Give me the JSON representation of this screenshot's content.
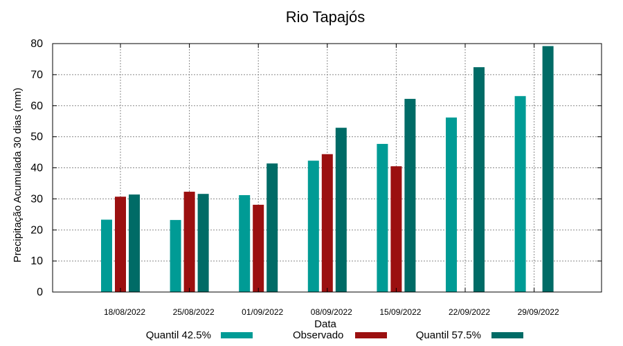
{
  "chart_data": {
    "type": "bar",
    "title": "Rio Tapajós",
    "xlabel": "Data",
    "ylabel": "Precipitação Acumulada 30 dias (mm)",
    "ylim": [
      0,
      80
    ],
    "yticks": [
      0,
      10,
      20,
      30,
      40,
      50,
      60,
      70,
      80
    ],
    "grid": true,
    "legend_position": "bottom",
    "categories": [
      "18/08/2022",
      "25/08/2022",
      "01/09/2022",
      "08/09/2022",
      "15/09/2022",
      "22/09/2022",
      "29/09/2022"
    ],
    "series": [
      {
        "name": "Quantil 42.5%",
        "color": "#009b95",
        "values": [
          23.3,
          23.2,
          31.2,
          42.3,
          47.7,
          56.2,
          63.1
        ]
      },
      {
        "name": "Observado",
        "color": "#9b1010",
        "values": [
          30.7,
          32.3,
          28.1,
          44.4,
          40.5,
          null,
          null
        ]
      },
      {
        "name": "Quantil 57.5%",
        "color": "#006b66",
        "values": [
          31.4,
          31.6,
          41.4,
          52.9,
          62.2,
          72.4,
          79.2
        ]
      }
    ]
  }
}
